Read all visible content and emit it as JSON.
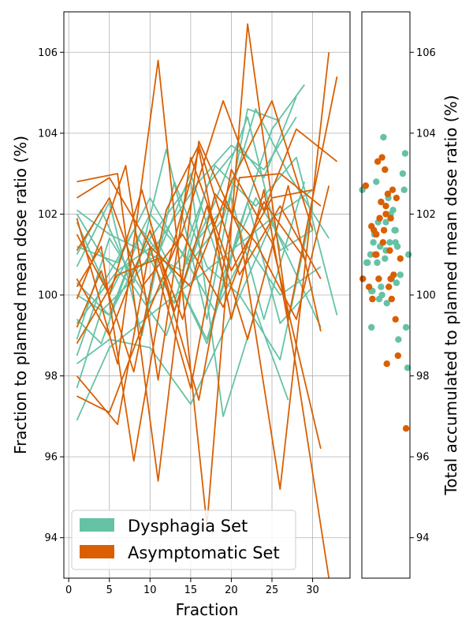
{
  "colors": {
    "dysphagia": "#66c2a5",
    "asymptomatic": "#d95f02"
  },
  "chart_data": [
    {
      "type": "line",
      "xlabel": "Fraction",
      "ylabel": "Fraction to planned mean dose ratio (%)",
      "xlim": [
        -0.6,
        34.6
      ],
      "ylim": [
        93,
        107
      ],
      "xticks": [
        0,
        5,
        10,
        15,
        20,
        25,
        30
      ],
      "yticks": [
        94,
        96,
        98,
        100,
        102,
        104,
        106
      ],
      "grid": true,
      "legend": {
        "placement": "lower-left",
        "entries": [
          "Dysphagia Set",
          "Asymptomatic Set"
        ]
      },
      "series": [
        {
          "group": "Dysphagia Set",
          "x": [
            1,
            5,
            10,
            15,
            20,
            25,
            30
          ],
          "y": [
            96.9,
            98.7,
            99.5,
            100.3,
            101.1,
            101.9,
            102.6
          ]
        },
        {
          "group": "Dysphagia Set",
          "x": [
            1,
            4,
            8,
            12,
            16,
            20,
            24,
            28
          ],
          "y": [
            97.7,
            99.6,
            100.4,
            101.6,
            102.8,
            103.7,
            103.1,
            104.4
          ]
        },
        {
          "group": "Dysphagia Set",
          "x": [
            1,
            5,
            10,
            15,
            20,
            25,
            31
          ],
          "y": [
            98.3,
            98.9,
            98.7,
            97.3,
            99.5,
            101.8,
            99.2
          ]
        },
        {
          "group": "Dysphagia Set",
          "x": [
            1,
            6,
            11,
            17,
            21,
            25,
            29
          ],
          "y": [
            99.3,
            100.6,
            101.3,
            98.9,
            101.7,
            104.1,
            105.2
          ]
        },
        {
          "group": "Dysphagia Set",
          "x": [
            1,
            5,
            10,
            15,
            19,
            23,
            27
          ],
          "y": [
            100.3,
            99.5,
            101.4,
            102.8,
            97.0,
            99.6,
            97.4
          ]
        },
        {
          "group": "Dysphagia Set",
          "x": [
            1,
            4,
            8,
            12,
            17,
            22,
            26
          ],
          "y": [
            101.0,
            102.1,
            100.3,
            103.6,
            99.4,
            104.6,
            104.3
          ]
        },
        {
          "group": "Dysphagia Set",
          "x": [
            1,
            5,
            9,
            14,
            18,
            22,
            26,
            30
          ],
          "y": [
            102.1,
            101.5,
            101.1,
            100.6,
            102.3,
            104.4,
            101.1,
            101.6
          ]
        },
        {
          "group": "Dysphagia Set",
          "x": [
            1,
            6,
            10,
            14,
            18,
            22,
            26,
            31
          ],
          "y": [
            101.2,
            100.8,
            102.4,
            101.0,
            99.6,
            101.2,
            100.0,
            100.7
          ]
        },
        {
          "group": "Dysphagia Set",
          "x": [
            1,
            4,
            8,
            13,
            17,
            21,
            24,
            28
          ],
          "y": [
            98.5,
            100.2,
            101.6,
            99.8,
            102.7,
            103.7,
            102.9,
            104.9
          ]
        },
        {
          "group": "Dysphagia Set",
          "x": [
            1,
            5,
            10,
            14,
            18,
            23,
            28,
            33
          ],
          "y": [
            98.9,
            101.4,
            99.8,
            101.0,
            103.2,
            102.2,
            103.4,
            99.5
          ]
        },
        {
          "group": "Dysphagia Set",
          "x": [
            1,
            5,
            9,
            13,
            17,
            21,
            26,
            30
          ],
          "y": [
            100.7,
            102.3,
            99.0,
            102.8,
            100.7,
            100.0,
            98.4,
            102.2
          ]
        },
        {
          "group": "Dysphagia Set",
          "x": [
            1,
            4,
            7,
            11,
            15,
            19,
            23,
            27
          ],
          "y": [
            99.4,
            98.8,
            100.5,
            101.0,
            103.0,
            100.5,
            102.4,
            101.1
          ]
        },
        {
          "group": "Dysphagia Set",
          "x": [
            1,
            5,
            10,
            15,
            19,
            23,
            27,
            32
          ],
          "y": [
            101.8,
            100.0,
            102.0,
            100.8,
            101.9,
            104.6,
            103.0,
            101.4
          ]
        },
        {
          "group": "Dysphagia Set",
          "x": [
            1,
            5,
            9,
            13,
            17,
            22,
            26,
            30
          ],
          "y": [
            100.0,
            99.5,
            101.6,
            100.5,
            98.8,
            102.3,
            99.3,
            100.2
          ]
        },
        {
          "group": "Dysphagia Set",
          "x": [
            1,
            4,
            8,
            12,
            16,
            20,
            24,
            29
          ],
          "y": [
            102.0,
            101.0,
            100.2,
            99.0,
            101.4,
            102.4,
            99.4,
            102.8
          ]
        },
        {
          "group": "Asymptomatic Set",
          "x": [
            1,
            6,
            11,
            16,
            21,
            26,
            32
          ],
          "y": [
            102.8,
            103.0,
            95.4,
            103.8,
            101.6,
            95.2,
            106.0
          ]
        },
        {
          "group": "Asymptomatic Set",
          "x": [
            1,
            5,
            10,
            15,
            20,
            25,
            30
          ],
          "y": [
            102.4,
            102.9,
            101.2,
            100.2,
            102.8,
            104.8,
            101.6
          ]
        },
        {
          "group": "Asymptomatic Set",
          "x": [
            1,
            6,
            11,
            17,
            22,
            27,
            33
          ],
          "y": [
            101.9,
            98.3,
            105.8,
            94.3,
            106.7,
            99.4,
            105.4
          ]
        },
        {
          "group": "Asymptomatic Set",
          "x": [
            1,
            4,
            8,
            12,
            16,
            20,
            24,
            28,
            32
          ],
          "y": [
            100.2,
            101.2,
            95.9,
            100.6,
            103.6,
            99.4,
            102.6,
            98.2,
            93.0
          ]
        },
        {
          "group": "Asymptomatic Set",
          "x": [
            1,
            5,
            9,
            14,
            19,
            24,
            28,
            33
          ],
          "y": [
            97.5,
            97.1,
            99.2,
            101.6,
            104.8,
            102.1,
            104.1,
            103.3
          ]
        },
        {
          "group": "Asymptomatic Set",
          "x": [
            1,
            4,
            7,
            11,
            15,
            20,
            25,
            30
          ],
          "y": [
            99.9,
            101.4,
            103.2,
            97.9,
            103.4,
            100.6,
            102.4,
            102.6
          ]
        },
        {
          "group": "Asymptomatic Set",
          "x": [
            1,
            6,
            10,
            15,
            20,
            25,
            31
          ],
          "y": [
            98.0,
            96.8,
            101.2,
            97.7,
            103.1,
            101.3,
            96.2
          ]
        },
        {
          "group": "Asymptomatic Set",
          "x": [
            1,
            5,
            9,
            13,
            17,
            22,
            27,
            31
          ],
          "y": [
            101.5,
            100.0,
            102.6,
            99.6,
            102.2,
            98.9,
            102.7,
            99.1
          ]
        },
        {
          "group": "Asymptomatic Set",
          "x": [
            1,
            4,
            8,
            12,
            16,
            21,
            26,
            31
          ],
          "y": [
            99.2,
            100.6,
            98.1,
            102.1,
            103.7,
            100.5,
            102.2,
            100.4
          ]
        },
        {
          "group": "Asymptomatic Set",
          "x": [
            1,
            5,
            10,
            14,
            18,
            23,
            28,
            32
          ],
          "y": [
            100.4,
            99.0,
            101.6,
            99.4,
            102.5,
            101.3,
            99.4,
            102.7
          ]
        },
        {
          "group": "Asymptomatic Set",
          "x": [
            1,
            6,
            11,
            16,
            21,
            26,
            31
          ],
          "y": [
            98.8,
            100.5,
            100.9,
            97.4,
            102.9,
            103.0,
            102.2
          ]
        },
        {
          "group": "Asymptomatic Set",
          "x": [
            1,
            5,
            9,
            14,
            19,
            24,
            29
          ],
          "y": [
            101.1,
            102.4,
            100.2,
            101.5,
            99.7,
            102.3,
            100.9
          ]
        }
      ]
    },
    {
      "type": "scatter",
      "ylabel": "Total accumulated to planned mean dose ratio (%)",
      "ylim": [
        93,
        107
      ],
      "yticks": [
        94,
        96,
        98,
        100,
        102,
        104,
        106
      ],
      "y_axis_position": "right",
      "series": [
        {
          "group": "Dysphagia Set",
          "x": [
            0.01,
            0.1,
            0.12,
            0.18,
            0.2,
            0.22,
            0.24,
            0.26,
            0.3,
            0.32,
            0.34,
            0.36,
            0.38,
            0.4,
            0.42,
            0.45,
            0.48,
            0.5,
            0.52,
            0.55,
            0.58,
            0.6,
            0.62,
            0.65,
            0.68,
            0.7,
            0.72,
            0.74,
            0.76,
            0.8,
            0.85,
            0.88,
            0.9,
            0.92,
            0.95,
            0.97,
            0.2,
            0.5,
            0.7,
            0.3
          ],
          "y": [
            102.6,
            100.8,
            100.8,
            101.0,
            99.2,
            100.1,
            101.3,
            101.5,
            101.0,
            100.8,
            101.8,
            99.9,
            101.2,
            100.2,
            100.0,
            103.9,
            100.9,
            101.8,
            99.8,
            102.4,
            101.3,
            102.0,
            100.4,
            102.1,
            101.6,
            101.3,
            100.3,
            101.2,
            98.9,
            100.5,
            103.0,
            102.6,
            103.5,
            99.2,
            98.2,
            101.0,
            100.1,
            101.1,
            101.6,
            102.8
          ]
        },
        {
          "group": "Asymptomatic Set",
          "x": [
            0.02,
            0.08,
            0.15,
            0.2,
            0.22,
            0.25,
            0.28,
            0.3,
            0.33,
            0.35,
            0.37,
            0.4,
            0.42,
            0.44,
            0.46,
            0.48,
            0.5,
            0.52,
            0.54,
            0.56,
            0.58,
            0.6,
            0.62,
            0.64,
            0.66,
            0.7,
            0.72,
            0.75,
            0.8,
            0.92,
            0.3,
            0.5,
            0.6
          ],
          "y": [
            100.4,
            102.7,
            100.2,
            101.7,
            99.9,
            101.6,
            101.0,
            101.5,
            103.3,
            100.4,
            101.9,
            102.3,
            103.4,
            101.3,
            101.6,
            103.1,
            102.2,
            98.3,
            102.5,
            100.2,
            101.1,
            101.9,
            99.9,
            102.6,
            100.5,
            99.4,
            102.4,
            98.5,
            100.9,
            96.7,
            101.0,
            102.0,
            100.4
          ]
        }
      ]
    }
  ]
}
